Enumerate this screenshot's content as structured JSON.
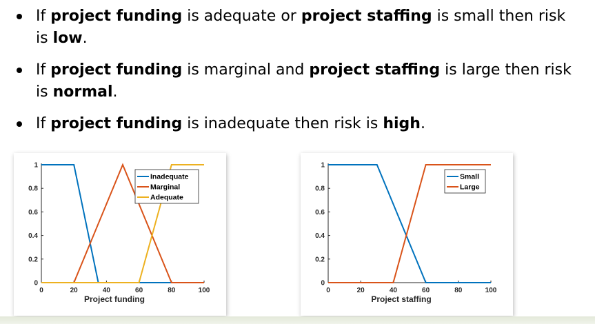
{
  "bullets": [
    {
      "parts": [
        {
          "t": "If ",
          "b": false
        },
        {
          "t": "project funding",
          "b": true
        },
        {
          "t": " is adequate or ",
          "b": false
        },
        {
          "t": "project staffing",
          "b": true
        },
        {
          "t": " is small then risk is ",
          "b": false
        },
        {
          "t": "low",
          "b": true
        },
        {
          "t": ".",
          "b": false
        }
      ]
    },
    {
      "parts": [
        {
          "t": "If ",
          "b": false
        },
        {
          "t": "project funding",
          "b": true
        },
        {
          "t": " is marginal and ",
          "b": false
        },
        {
          "t": "project staffing",
          "b": true
        },
        {
          "t": " is large then risk is ",
          "b": false
        },
        {
          "t": "normal",
          "b": true
        },
        {
          "t": ".",
          "b": false
        }
      ]
    },
    {
      "parts": [
        {
          "t": "If ",
          "b": false
        },
        {
          "t": "project funding",
          "b": true
        },
        {
          "t": " is inadequate then risk is ",
          "b": false
        },
        {
          "t": "high",
          "b": true
        },
        {
          "t": ".",
          "b": false
        }
      ]
    }
  ],
  "colors": {
    "blue": "#0072BD",
    "orange": "#D95319",
    "yellow": "#EDB120"
  },
  "chart_data": [
    {
      "type": "line",
      "xlabel": "Project funding",
      "ylabel": "",
      "xlim": [
        0,
        100
      ],
      "ylim": [
        0,
        1
      ],
      "xticks": [
        0,
        20,
        40,
        60,
        80,
        100
      ],
      "yticks": [
        0,
        0.2,
        0.4,
        0.6,
        0.8,
        1
      ],
      "legend_position": "top-right",
      "grid": false,
      "series": [
        {
          "name": "Inadequate",
          "color": "blue",
          "points": [
            [
              0,
              1
            ],
            [
              20,
              1
            ],
            [
              35,
              0
            ],
            [
              100,
              0
            ]
          ]
        },
        {
          "name": "Marginal",
          "color": "orange",
          "points": [
            [
              0,
              0
            ],
            [
              20,
              0
            ],
            [
              50,
              1
            ],
            [
              80,
              0
            ],
            [
              100,
              0
            ]
          ]
        },
        {
          "name": "Adequate",
          "color": "yellow",
          "points": [
            [
              0,
              0
            ],
            [
              60,
              0
            ],
            [
              80,
              1
            ],
            [
              100,
              1
            ]
          ]
        }
      ]
    },
    {
      "type": "line",
      "xlabel": "Project staffing",
      "ylabel": "",
      "xlim": [
        0,
        100
      ],
      "ylim": [
        0,
        1
      ],
      "xticks": [
        0,
        20,
        40,
        60,
        80,
        100
      ],
      "yticks": [
        0,
        0.2,
        0.4,
        0.6,
        0.8,
        1
      ],
      "legend_position": "top-right",
      "grid": false,
      "series": [
        {
          "name": "Small",
          "color": "blue",
          "points": [
            [
              0,
              1
            ],
            [
              30,
              1
            ],
            [
              60,
              0
            ],
            [
              100,
              0
            ]
          ]
        },
        {
          "name": "Large",
          "color": "orange",
          "points": [
            [
              0,
              0
            ],
            [
              40,
              0
            ],
            [
              60,
              1
            ],
            [
              100,
              1
            ]
          ]
        }
      ]
    }
  ]
}
